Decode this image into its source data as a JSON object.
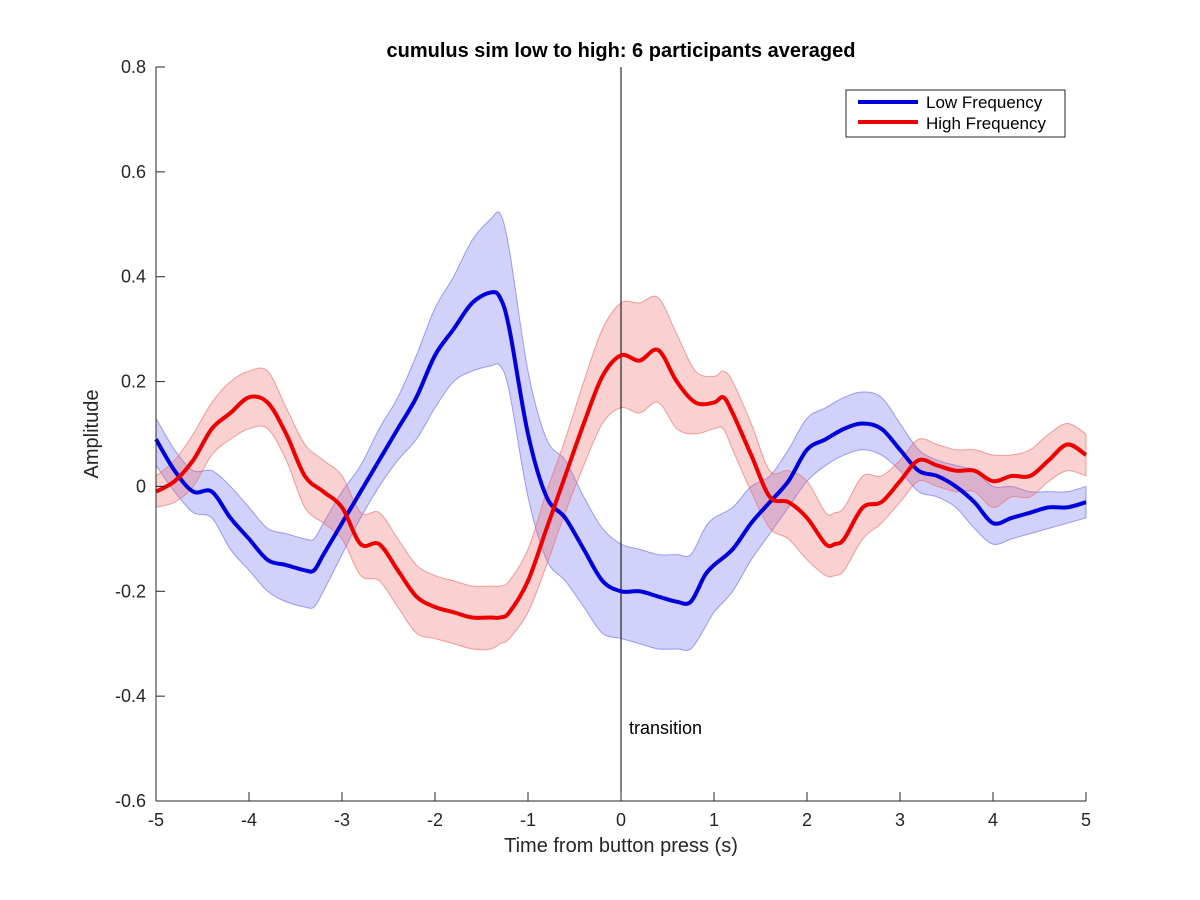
{
  "chart_data": {
    "type": "line",
    "title": "cumulus sim low to high: 6 participants averaged",
    "xlabel": "Time from button press (s)",
    "ylabel": "Amplitude",
    "xlim": [
      -5,
      5
    ],
    "ylim": [
      -0.6,
      0.8
    ],
    "xticks": [
      -5,
      -4,
      -3,
      -2,
      -1,
      0,
      1,
      2,
      3,
      4,
      5
    ],
    "yticks": [
      -0.6,
      -0.4,
      -0.2,
      0,
      0.2,
      0.4,
      0.6,
      0.8
    ],
    "xtick_labels": [
      "-5",
      "-4",
      "-3",
      "-2",
      "-1",
      "0",
      "1",
      "2",
      "3",
      "4",
      "5"
    ],
    "ytick_labels": [
      "-0.6",
      "-0.4",
      "-0.2",
      "0",
      "0.2",
      "0.4",
      "0.6",
      "0.8"
    ],
    "grid": false,
    "legend_position": "top-right",
    "vline": {
      "x": 0,
      "label": "transition"
    },
    "series": [
      {
        "name": "Low Frequency",
        "color": "#0000dd",
        "band_color": "#6666ee",
        "x": [
          -5.0,
          -4.8,
          -4.6,
          -4.4,
          -4.2,
          -4.0,
          -3.8,
          -3.6,
          -3.4,
          -3.3,
          -3.2,
          -3.0,
          -2.8,
          -2.6,
          -2.4,
          -2.2,
          -2.0,
          -1.8,
          -1.6,
          -1.4,
          -1.3,
          -1.2,
          -1.0,
          -0.8,
          -0.6,
          -0.4,
          -0.2,
          0.0,
          0.2,
          0.4,
          0.6,
          0.75,
          0.9,
          1.0,
          1.2,
          1.4,
          1.6,
          1.8,
          2.0,
          2.2,
          2.4,
          2.6,
          2.8,
          3.0,
          3.2,
          3.4,
          3.6,
          3.8,
          4.0,
          4.2,
          4.4,
          4.6,
          4.8,
          5.0
        ],
        "mean": [
          0.09,
          0.03,
          -0.01,
          -0.01,
          -0.06,
          -0.1,
          -0.14,
          -0.15,
          -0.16,
          -0.16,
          -0.13,
          -0.07,
          -0.01,
          0.05,
          0.11,
          0.17,
          0.25,
          0.3,
          0.35,
          0.37,
          0.36,
          0.3,
          0.1,
          -0.02,
          -0.06,
          -0.12,
          -0.18,
          -0.2,
          -0.2,
          -0.21,
          -0.22,
          -0.22,
          -0.17,
          -0.15,
          -0.12,
          -0.07,
          -0.03,
          0.01,
          0.07,
          0.09,
          0.11,
          0.12,
          0.11,
          0.07,
          0.03,
          0.02,
          0.0,
          -0.03,
          -0.07,
          -0.06,
          -0.05,
          -0.04,
          -0.04,
          -0.03
        ],
        "lower": [
          0.04,
          -0.01,
          -0.05,
          -0.06,
          -0.12,
          -0.16,
          -0.2,
          -0.22,
          -0.23,
          -0.23,
          -0.2,
          -0.13,
          -0.06,
          0.0,
          0.05,
          0.09,
          0.15,
          0.2,
          0.22,
          0.23,
          0.23,
          0.18,
          -0.02,
          -0.14,
          -0.18,
          -0.23,
          -0.28,
          -0.29,
          -0.3,
          -0.31,
          -0.31,
          -0.31,
          -0.27,
          -0.24,
          -0.2,
          -0.14,
          -0.09,
          -0.04,
          0.01,
          0.04,
          0.06,
          0.07,
          0.06,
          0.03,
          -0.01,
          -0.02,
          -0.04,
          -0.08,
          -0.11,
          -0.1,
          -0.09,
          -0.08,
          -0.07,
          -0.06
        ],
        "upper": [
          0.13,
          0.07,
          0.03,
          0.03,
          0.0,
          -0.04,
          -0.08,
          -0.09,
          -0.1,
          -0.1,
          -0.07,
          -0.01,
          0.04,
          0.11,
          0.17,
          0.25,
          0.34,
          0.4,
          0.47,
          0.51,
          0.52,
          0.45,
          0.22,
          0.09,
          0.05,
          -0.02,
          -0.08,
          -0.11,
          -0.12,
          -0.13,
          -0.13,
          -0.13,
          -0.08,
          -0.06,
          -0.04,
          0.0,
          0.02,
          0.07,
          0.13,
          0.15,
          0.17,
          0.18,
          0.17,
          0.12,
          0.07,
          0.05,
          0.04,
          0.03,
          0.0,
          0.0,
          -0.01,
          -0.01,
          -0.01,
          0.0
        ]
      },
      {
        "name": "High Frequency",
        "color": "#ee0000",
        "band_color": "#ee6666",
        "x": [
          -5.0,
          -4.8,
          -4.6,
          -4.4,
          -4.2,
          -4.0,
          -3.8,
          -3.6,
          -3.4,
          -3.2,
          -3.0,
          -2.8,
          -2.6,
          -2.4,
          -2.2,
          -2.0,
          -1.8,
          -1.6,
          -1.4,
          -1.3,
          -1.2,
          -1.0,
          -0.8,
          -0.6,
          -0.4,
          -0.2,
          0.0,
          0.2,
          0.4,
          0.6,
          0.8,
          1.0,
          1.1,
          1.2,
          1.4,
          1.6,
          1.8,
          2.0,
          2.2,
          2.3,
          2.4,
          2.6,
          2.8,
          3.0,
          3.2,
          3.4,
          3.6,
          3.8,
          4.0,
          4.2,
          4.4,
          4.6,
          4.8,
          5.0
        ],
        "mean": [
          -0.01,
          0.01,
          0.05,
          0.11,
          0.14,
          0.17,
          0.16,
          0.1,
          0.02,
          -0.01,
          -0.04,
          -0.11,
          -0.11,
          -0.16,
          -0.21,
          -0.23,
          -0.24,
          -0.25,
          -0.25,
          -0.25,
          -0.24,
          -0.18,
          -0.08,
          0.02,
          0.12,
          0.21,
          0.25,
          0.24,
          0.26,
          0.2,
          0.16,
          0.16,
          0.17,
          0.14,
          0.06,
          -0.02,
          -0.03,
          -0.06,
          -0.11,
          -0.11,
          -0.1,
          -0.04,
          -0.03,
          0.01,
          0.05,
          0.04,
          0.03,
          0.03,
          0.01,
          0.02,
          0.02,
          0.05,
          0.08,
          0.06
        ],
        "lower": [
          -0.04,
          -0.03,
          0.0,
          0.06,
          0.09,
          0.11,
          0.11,
          0.05,
          -0.04,
          -0.07,
          -0.1,
          -0.17,
          -0.18,
          -0.23,
          -0.28,
          -0.29,
          -0.3,
          -0.31,
          -0.31,
          -0.3,
          -0.29,
          -0.24,
          -0.15,
          -0.05,
          0.04,
          0.12,
          0.15,
          0.14,
          0.16,
          0.11,
          0.1,
          0.11,
          0.11,
          0.07,
          -0.01,
          -0.08,
          -0.1,
          -0.14,
          -0.17,
          -0.17,
          -0.16,
          -0.1,
          -0.07,
          -0.03,
          0.01,
          0.0,
          -0.01,
          -0.01,
          -0.04,
          -0.02,
          -0.02,
          0.01,
          0.03,
          0.02
        ],
        "upper": [
          0.02,
          0.05,
          0.1,
          0.16,
          0.2,
          0.22,
          0.22,
          0.15,
          0.08,
          0.05,
          0.02,
          -0.05,
          -0.05,
          -0.1,
          -0.15,
          -0.17,
          -0.18,
          -0.19,
          -0.19,
          -0.19,
          -0.18,
          -0.12,
          -0.01,
          0.09,
          0.2,
          0.3,
          0.35,
          0.35,
          0.36,
          0.29,
          0.22,
          0.21,
          0.22,
          0.2,
          0.12,
          0.03,
          0.03,
          0.01,
          -0.05,
          -0.05,
          -0.04,
          0.02,
          0.02,
          0.05,
          0.09,
          0.08,
          0.07,
          0.07,
          0.06,
          0.06,
          0.07,
          0.1,
          0.12,
          0.1
        ]
      }
    ]
  }
}
